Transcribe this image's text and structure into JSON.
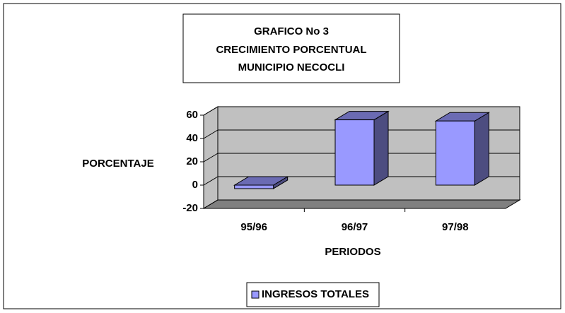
{
  "chart_data": {
    "type": "bar3d",
    "title": [
      "GRAFICO No 3",
      "CRECIMIENTO PORCENTUAL",
      "MUNICIPIO NECOCLI"
    ],
    "y_label": "PORCENTAJE",
    "x_label": "PERIODOS",
    "categories": [
      "95/96",
      "96/97",
      "97/98"
    ],
    "series": [
      {
        "name": "INGRESOS TOTALES",
        "color": "#9999ff",
        "values": [
          -3,
          56,
          55
        ]
      }
    ],
    "ylim": [
      -20,
      60
    ],
    "yticks": [
      -20,
      0,
      20,
      40,
      60
    ],
    "grid": true,
    "legend": "bottom"
  }
}
